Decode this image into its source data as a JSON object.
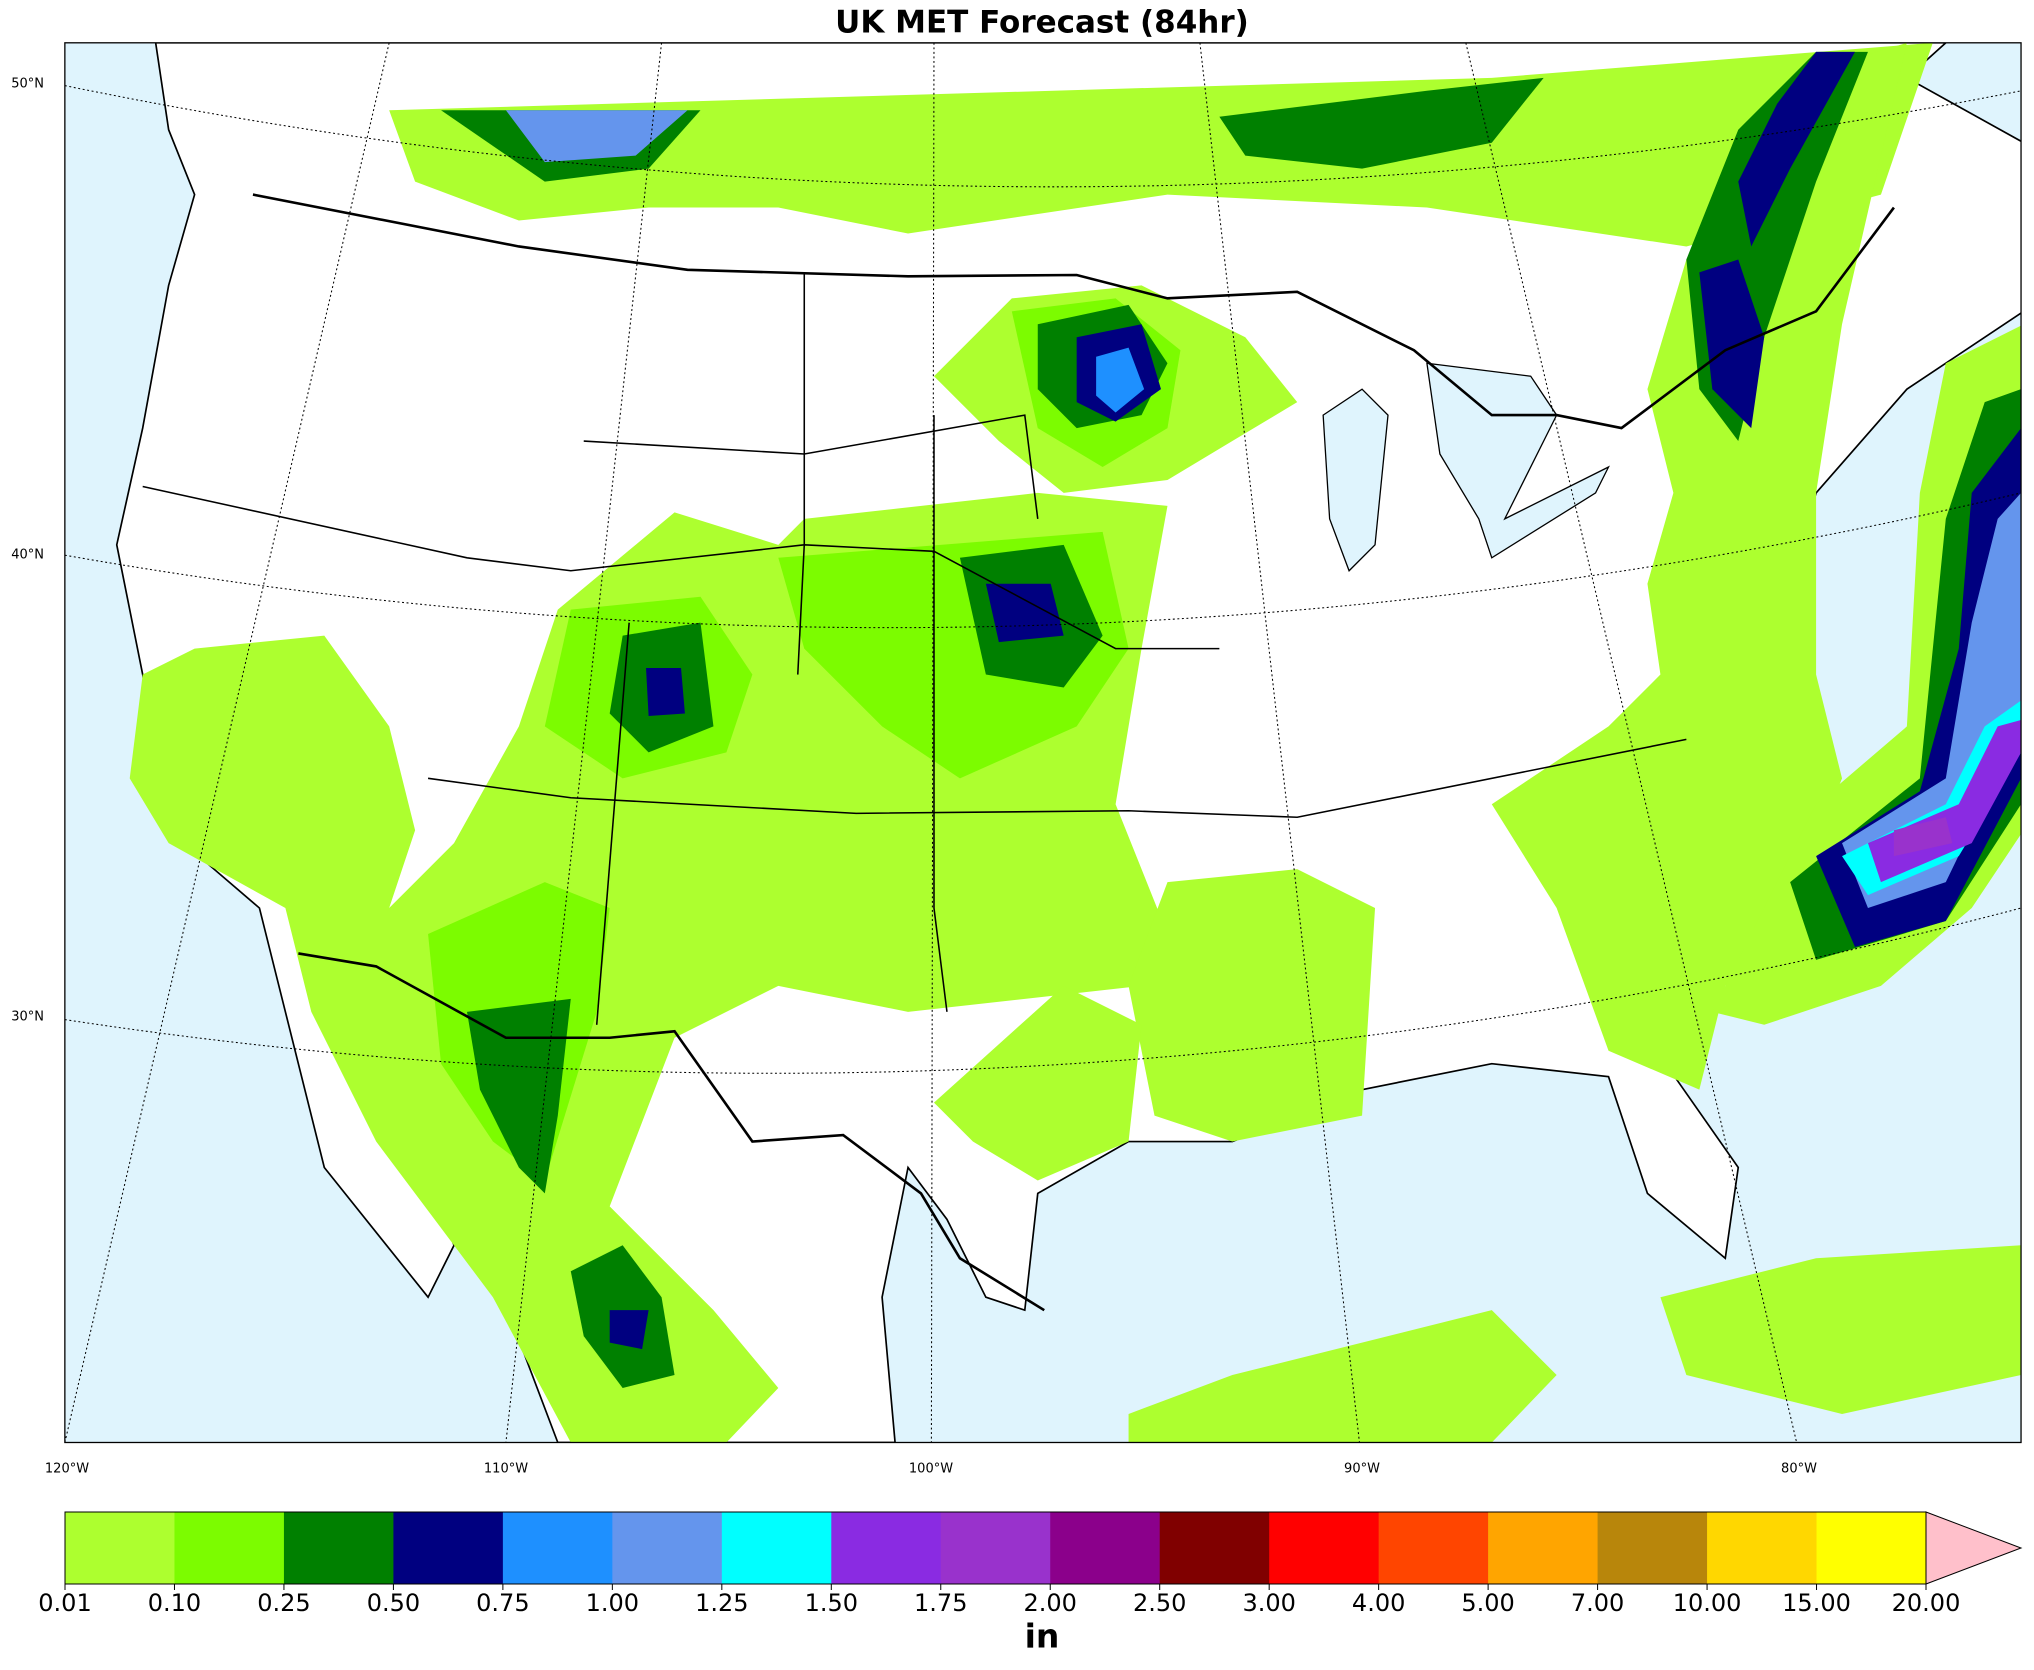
{
  "title": "UK MET Forecast (84hr)",
  "map": {
    "lat_labels": [
      "50°N",
      "40°N",
      "30°N"
    ],
    "lon_labels": [
      "120°W",
      "110°W",
      "100°W",
      "90°W",
      "80°W"
    ]
  },
  "colorbar": {
    "levels": [
      "0.01",
      "0.10",
      "0.25",
      "0.50",
      "0.75",
      "1.00",
      "1.25",
      "1.50",
      "1.75",
      "2.00",
      "2.50",
      "3.00",
      "4.00",
      "5.00",
      "7.00",
      "10.00",
      "15.00",
      "20.00"
    ],
    "colors": [
      "#adff2f",
      "#7cfc00",
      "#008000",
      "#000080",
      "#1e90ff",
      "#6495ed",
      "#00ffff",
      "#8a2be2",
      "#9932cc",
      "#8b008b",
      "#800000",
      "#ff0000",
      "#ff4500",
      "#ffa500",
      "#b8860b",
      "#ffd700",
      "#ffff00"
    ],
    "extend_color": "#ffc0cb",
    "unit": "in"
  }
}
